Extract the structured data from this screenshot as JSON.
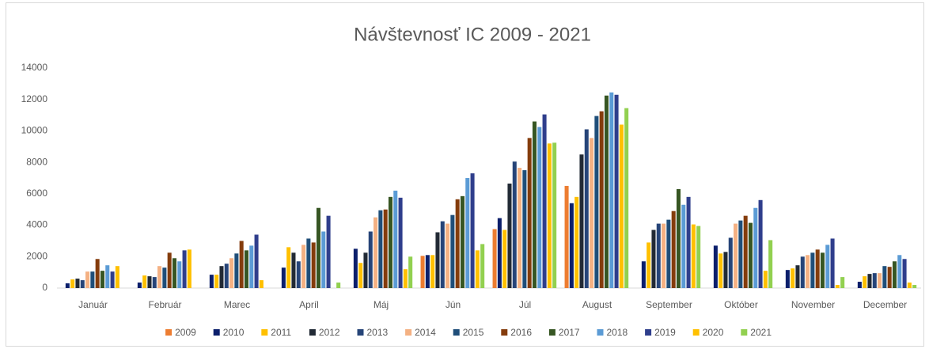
{
  "chart_data": {
    "type": "bar",
    "title": "Návštevnosť IC 2009 - 2021",
    "categories": [
      "Január",
      "Február",
      "Marec",
      "Apríl",
      "Máj",
      "Jún",
      "Júl",
      "August",
      "September",
      "Október",
      "November",
      "December"
    ],
    "series": [
      {
        "name": "2009",
        "color": "#ED7D31",
        "values": [
          null,
          null,
          null,
          null,
          null,
          2050,
          3750,
          6500,
          null,
          null,
          null,
          null
        ]
      },
      {
        "name": "2010",
        "color": "#0B1F6B",
        "values": [
          300,
          350,
          850,
          1300,
          2500,
          2100,
          4450,
          5400,
          1700,
          2700,
          1150,
          400
        ]
      },
      {
        "name": "2011",
        "color": "#FFC000",
        "values": [
          550,
          800,
          850,
          2600,
          1600,
          2100,
          3700,
          5800,
          2900,
          2200,
          1250,
          750
        ]
      },
      {
        "name": "2012",
        "color": "#222A35",
        "values": [
          600,
          750,
          1400,
          2250,
          2250,
          3550,
          6650,
          8500,
          3700,
          2300,
          1450,
          900
        ]
      },
      {
        "name": "2013",
        "color": "#264478",
        "values": [
          500,
          700,
          1550,
          1700,
          3600,
          4250,
          8050,
          10100,
          4100,
          3200,
          2000,
          950
        ]
      },
      {
        "name": "2014",
        "color": "#F4B183",
        "values": [
          1050,
          1400,
          1900,
          2750,
          4500,
          4100,
          7650,
          9550,
          4100,
          4100,
          2100,
          950
        ]
      },
      {
        "name": "2015",
        "color": "#1F4E79",
        "values": [
          1050,
          1300,
          2200,
          3150,
          4950,
          4650,
          7500,
          10950,
          4350,
          4300,
          2250,
          1400
        ]
      },
      {
        "name": "2016",
        "color": "#843C0C",
        "values": [
          1850,
          2250,
          3000,
          2900,
          5000,
          5650,
          9550,
          11250,
          4900,
          4600,
          2450,
          1350
        ]
      },
      {
        "name": "2017",
        "color": "#375623",
        "values": [
          1100,
          1900,
          2400,
          5100,
          5800,
          5850,
          10600,
          12250,
          6300,
          4150,
          2250,
          1700
        ]
      },
      {
        "name": "2018",
        "color": "#5B9BD5",
        "values": [
          1450,
          1700,
          2700,
          3600,
          6200,
          7000,
          10250,
          12450,
          5300,
          5100,
          2750,
          2100
        ]
      },
      {
        "name": "2019",
        "color": "#2F3E8C",
        "values": [
          1050,
          2400,
          3400,
          4600,
          5750,
          7300,
          11050,
          12300,
          5800,
          5600,
          3150,
          1850
        ]
      },
      {
        "name": "2020",
        "color": "#FFC000",
        "values": [
          1400,
          2450,
          500,
          null,
          1200,
          2400,
          9200,
          10400,
          4050,
          1100,
          200,
          350
        ]
      },
      {
        "name": "2021",
        "color": "#92D050",
        "values": [
          null,
          null,
          null,
          350,
          2000,
          2800,
          9250,
          11450,
          3950,
          3050,
          700,
          200
        ]
      }
    ],
    "ylim": [
      0,
      14000
    ],
    "yticks": [
      0,
      2000,
      4000,
      6000,
      8000,
      10000,
      12000,
      14000
    ],
    "grid": false,
    "legend": "bottom"
  }
}
